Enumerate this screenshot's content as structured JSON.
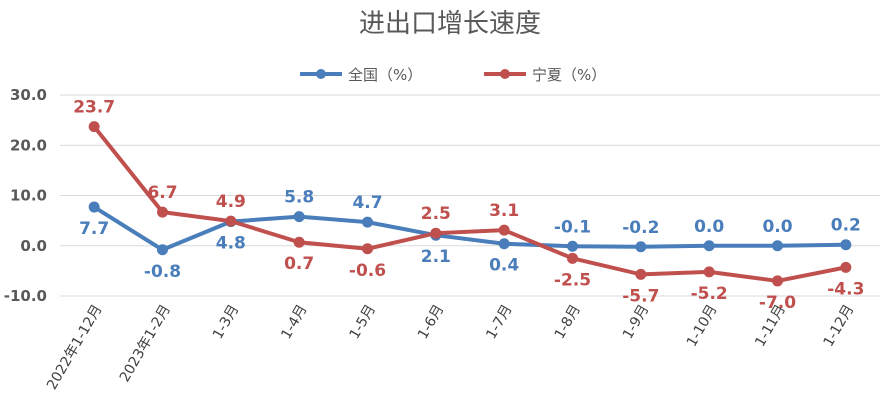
{
  "chart_data": {
    "type": "line",
    "title": "进出口增长速度",
    "categories": [
      "2022年1-12月",
      "2023年1-2月",
      "1-3月",
      "1-4月",
      "1-5月",
      "1-6月",
      "1-7月",
      "1-8月",
      "1-9月",
      "1-10月",
      "1-11月",
      "1-12月"
    ],
    "ylim": [
      -10,
      30
    ],
    "yticks": [
      "30.0",
      "20.0",
      "10.0",
      "0.0",
      "-10.0"
    ],
    "grid": true,
    "legend": "top-center",
    "series": [
      {
        "name": "全国（%）",
        "color": "#4a7ebb",
        "values": [
          7.7,
          -0.8,
          4.8,
          5.8,
          4.7,
          2.1,
          0.4,
          -0.1,
          -0.2,
          0.0,
          0.0,
          0.2
        ],
        "labels": [
          "7.7",
          "-0.8",
          "4.8",
          "5.8",
          "4.7",
          "2.1",
          "0.4",
          "-0.1",
          "-0.2",
          "0.0",
          "0.0",
          "0.2"
        ]
      },
      {
        "name": "宁夏（%）",
        "color": "#c0504d",
        "values": [
          23.7,
          6.7,
          4.9,
          0.7,
          -0.6,
          2.5,
          3.1,
          -2.5,
          -5.7,
          -5.2,
          -7.0,
          -4.3
        ],
        "labels": [
          "23.7",
          "6.7",
          "4.9",
          "0.7",
          "-0.6",
          "2.5",
          "3.1",
          "-2.5",
          "-5.7",
          "-5.2",
          "-7.0",
          "-4.3"
        ]
      }
    ]
  }
}
